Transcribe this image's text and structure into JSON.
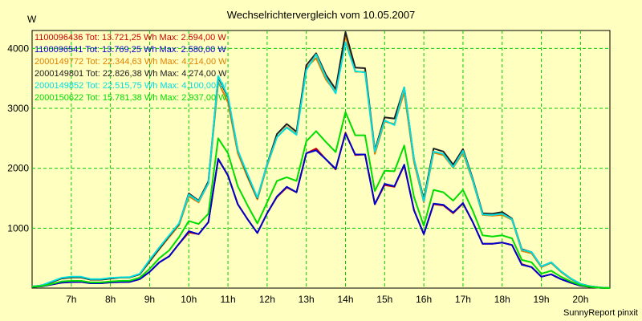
{
  "chart_data": {
    "type": "line",
    "title": "Wechselrichtervergleich vom 10.05.2007",
    "ylabel": "W",
    "xlabel": "",
    "footer": "SunnyReport pinxit",
    "x_ticks": [
      "7h",
      "8h",
      "9h",
      "10h",
      "11h",
      "12h",
      "13h",
      "14h",
      "15h",
      "16h",
      "17h",
      "18h",
      "19h",
      "20h"
    ],
    "y_ticks": [
      1000,
      2000,
      3000,
      4000
    ],
    "xlim": [
      6.0,
      20.75
    ],
    "ylim": [
      0,
      4300
    ],
    "grid": true,
    "legend_position": "top-left",
    "x": [
      6.0,
      6.25,
      6.5,
      6.75,
      7.0,
      7.25,
      7.5,
      7.75,
      8.0,
      8.25,
      8.5,
      8.75,
      9.0,
      9.25,
      9.5,
      9.75,
      10.0,
      10.25,
      10.5,
      10.75,
      11.0,
      11.25,
      11.5,
      11.75,
      12.0,
      12.25,
      12.5,
      12.75,
      13.0,
      13.25,
      13.5,
      13.75,
      14.0,
      14.25,
      14.5,
      14.75,
      15.0,
      15.25,
      15.5,
      15.75,
      16.0,
      16.25,
      16.5,
      16.75,
      17.0,
      17.25,
      17.5,
      17.75,
      18.0,
      18.25,
      18.5,
      18.75,
      19.0,
      19.25,
      19.5,
      19.75,
      20.0,
      20.25,
      20.5,
      20.75
    ],
    "series": [
      {
        "name": "1100096436 Tot: 13.721,25 Wh Max: 2.594,00 W",
        "color": "#cc0000",
        "values": [
          20,
          30,
          60,
          90,
          100,
          105,
          80,
          80,
          95,
          100,
          105,
          150,
          270,
          430,
          530,
          740,
          930,
          900,
          1100,
          2150,
          1880,
          1400,
          1150,
          920,
          1250,
          1520,
          1680,
          1600,
          2250,
          2330,
          2150,
          1980,
          2594,
          2220,
          2230,
          1400,
          1720,
          1690,
          2050,
          1300,
          900,
          1400,
          1380,
          1250,
          1410,
          1100,
          740,
          740,
          760,
          720,
          400,
          350,
          190,
          230,
          150,
          90,
          40,
          20,
          5,
          0
        ]
      },
      {
        "name": "1100096541 Tot: 13.769,25 Wh Max: 2.580,00 W",
        "color": "#0000cc",
        "values": [
          20,
          30,
          60,
          90,
          100,
          105,
          80,
          80,
          95,
          100,
          105,
          150,
          270,
          430,
          530,
          740,
          950,
          900,
          1100,
          2160,
          1880,
          1400,
          1150,
          920,
          1250,
          1530,
          1690,
          1600,
          2250,
          2300,
          2150,
          1990,
          2580,
          2230,
          2230,
          1400,
          1740,
          1700,
          2060,
          1300,
          900,
          1410,
          1390,
          1260,
          1420,
          1100,
          740,
          740,
          760,
          720,
          390,
          350,
          190,
          230,
          150,
          90,
          40,
          20,
          5,
          0
        ]
      },
      {
        "name": "2000149772 Tot: 22.344,63 Wh Max: 4.214,00 W",
        "color": "#e08000",
        "values": [
          25,
          45,
          100,
          160,
          180,
          180,
          140,
          140,
          160,
          175,
          180,
          230,
          440,
          650,
          850,
          1050,
          1530,
          1430,
          1750,
          3440,
          3100,
          2250,
          1850,
          1480,
          2040,
          2520,
          2690,
          2570,
          3680,
          3840,
          3480,
          3270,
          4214,
          3610,
          3610,
          2240,
          2780,
          2740,
          3270,
          2100,
          1430,
          2260,
          2220,
          2010,
          2260,
          1780,
          1220,
          1210,
          1220,
          1140,
          620,
          580,
          350,
          420,
          270,
          150,
          70,
          30,
          10,
          0
        ]
      },
      {
        "name": "2000149801 Tot: 22.826,38 Wh Max: 4.274,00 W",
        "color": "#202020",
        "values": [
          25,
          45,
          100,
          160,
          180,
          180,
          140,
          140,
          160,
          175,
          180,
          230,
          450,
          660,
          870,
          1070,
          1580,
          1460,
          1780,
          3520,
          3180,
          2300,
          1880,
          1500,
          2070,
          2570,
          2740,
          2610,
          3720,
          3920,
          3560,
          3320,
          4274,
          3680,
          3670,
          2300,
          2850,
          2830,
          3350,
          2150,
          1480,
          2330,
          2280,
          2060,
          2320,
          1820,
          1250,
          1240,
          1270,
          1160,
          650,
          600,
          360,
          430,
          280,
          160,
          70,
          30,
          10,
          0
        ]
      },
      {
        "name": "2000149852 Tot: 22.515,75 Wh Max: 4.100,00 W",
        "color": "#00e0e0",
        "values": [
          25,
          45,
          110,
          170,
          190,
          190,
          150,
          150,
          170,
          180,
          185,
          240,
          470,
          680,
          880,
          1080,
          1560,
          1450,
          1750,
          3540,
          3200,
          2300,
          1900,
          1510,
          2060,
          2520,
          2680,
          2560,
          3640,
          3900,
          3520,
          3250,
          4100,
          3620,
          3600,
          2280,
          2800,
          2720,
          3350,
          2150,
          1450,
          2280,
          2240,
          2020,
          2290,
          1800,
          1230,
          1220,
          1240,
          1150,
          640,
          600,
          360,
          430,
          280,
          160,
          70,
          30,
          10,
          0
        ]
      },
      {
        "name": "2000150622 Tot: 15.781,38 Wh Max: 2.937,00 W",
        "color": "#00dd00",
        "values": [
          20,
          35,
          70,
          110,
          120,
          120,
          95,
          95,
          110,
          120,
          125,
          175,
          320,
          500,
          630,
          850,
          1120,
          1070,
          1240,
          2500,
          2250,
          1700,
          1380,
          1080,
          1430,
          1790,
          1850,
          1790,
          2450,
          2620,
          2440,
          2270,
          2937,
          2550,
          2550,
          1620,
          1960,
          1950,
          2380,
          1520,
          1040,
          1640,
          1600,
          1460,
          1640,
          1290,
          880,
          860,
          880,
          830,
          470,
          430,
          240,
          290,
          190,
          110,
          50,
          20,
          5,
          0
        ]
      }
    ]
  }
}
